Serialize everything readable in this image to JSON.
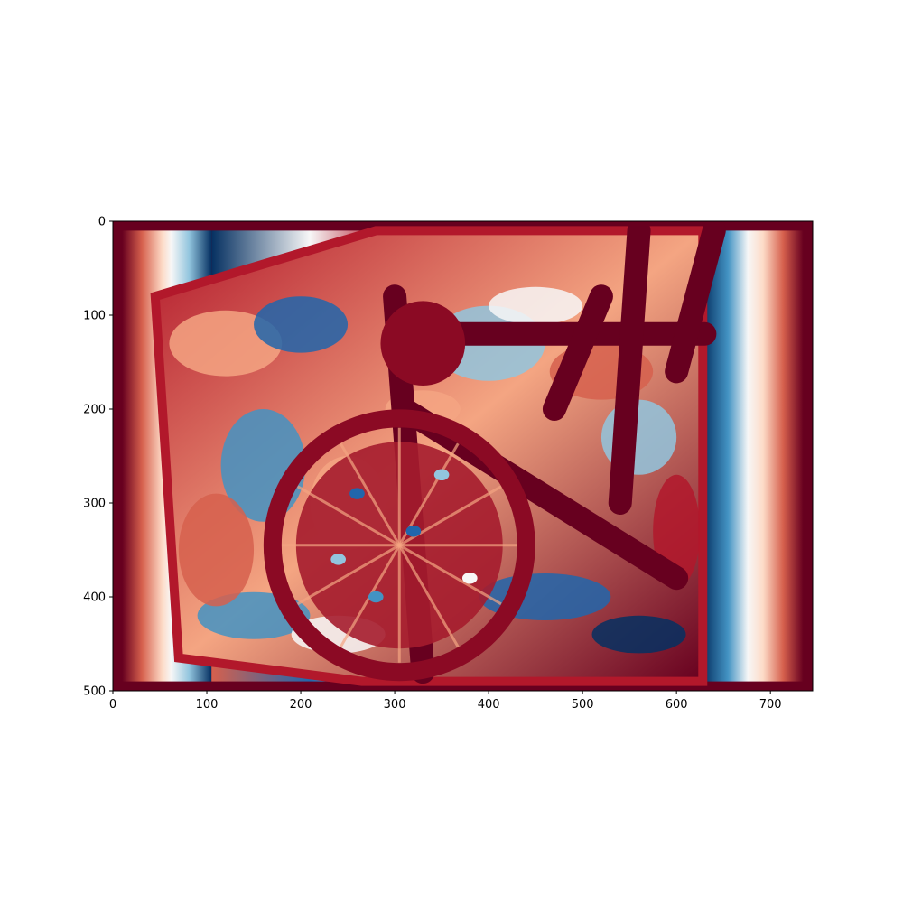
{
  "chart_data": {
    "type": "heatmap",
    "title": "",
    "xlabel": "",
    "ylabel": "",
    "colormap": "RdBu (red-white-blue, diverging)",
    "colors": {
      "dark_red": "#67001f",
      "red": "#b2182b",
      "light_red": "#ef8a62",
      "white": "#f7f7f7",
      "light_blue": "#67a9cf",
      "blue": "#2166ac",
      "dark_blue": "#053061"
    },
    "image_extent": {
      "width": 745,
      "height": 500
    },
    "xlim": [
      0,
      745
    ],
    "ylim": [
      500,
      0
    ],
    "y_inverted": true,
    "x_ticks": [
      0,
      100,
      200,
      300,
      400,
      500,
      600,
      700
    ],
    "y_ticks": [
      0,
      100,
      200,
      300,
      400,
      500
    ],
    "description_free_regions": {
      "outer_border_value": "dark_red",
      "left_band_x": [
        0,
        105
      ],
      "right_band_x": [
        628,
        745
      ],
      "warped_quad": [
        [
          45,
          80
        ],
        [
          280,
          10
        ],
        [
          628,
          10
        ],
        [
          628,
          490
        ],
        [
          265,
          490
        ],
        [
          70,
          465
        ]
      ],
      "wheel_center": [
        305,
        345
      ],
      "wheel_radius": 135
    },
    "grid": false,
    "legend": "none"
  }
}
